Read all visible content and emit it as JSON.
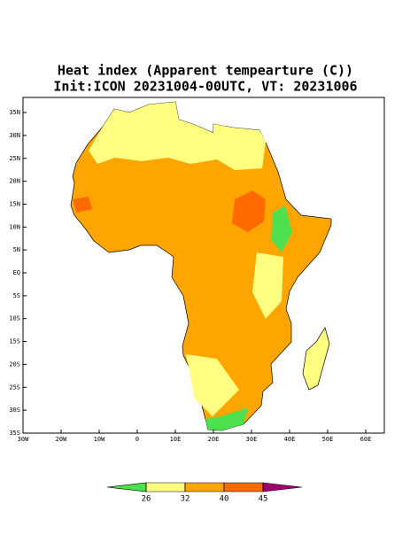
{
  "map": {
    "title": "Heat index (Apparent tempearture (C))",
    "subtitle": "Init:ICON 20231004-00UTC, VT: 20231006",
    "lat_ticks": [
      {
        "value": 35,
        "label": "35N"
      },
      {
        "value": 30,
        "label": "30N"
      },
      {
        "value": 25,
        "label": "25N"
      },
      {
        "value": 20,
        "label": "20N"
      },
      {
        "value": 15,
        "label": "15N"
      },
      {
        "value": 10,
        "label": "10N"
      },
      {
        "value": 5,
        "label": "5N"
      },
      {
        "value": 0,
        "label": "EQ"
      },
      {
        "value": -5,
        "label": "5S"
      },
      {
        "value": -10,
        "label": "10S"
      },
      {
        "value": -15,
        "label": "15S"
      },
      {
        "value": -20,
        "label": "20S"
      },
      {
        "value": -25,
        "label": "25S"
      },
      {
        "value": -30,
        "label": "30S"
      },
      {
        "value": -35,
        "label": "35S"
      }
    ],
    "lon_ticks": [
      {
        "value": -30,
        "label": "30W"
      },
      {
        "value": -20,
        "label": "20W"
      },
      {
        "value": -10,
        "label": "10W"
      },
      0,
      {
        "value": 10,
        "label": "10E"
      },
      {
        "value": 20,
        "label": "20E"
      },
      {
        "value": 30,
        "label": "30E"
      },
      {
        "value": 40,
        "label": "40E"
      },
      {
        "value": 50,
        "label": "50E"
      },
      {
        "value": 60,
        "label": "60E"
      }
    ],
    "colorbar": {
      "levels": [
        26,
        32,
        40,
        45
      ],
      "colors": [
        "#4fe04f",
        "#ffff80",
        "#ffa500",
        "#ff6a00",
        "#a0006e"
      ]
    }
  }
}
